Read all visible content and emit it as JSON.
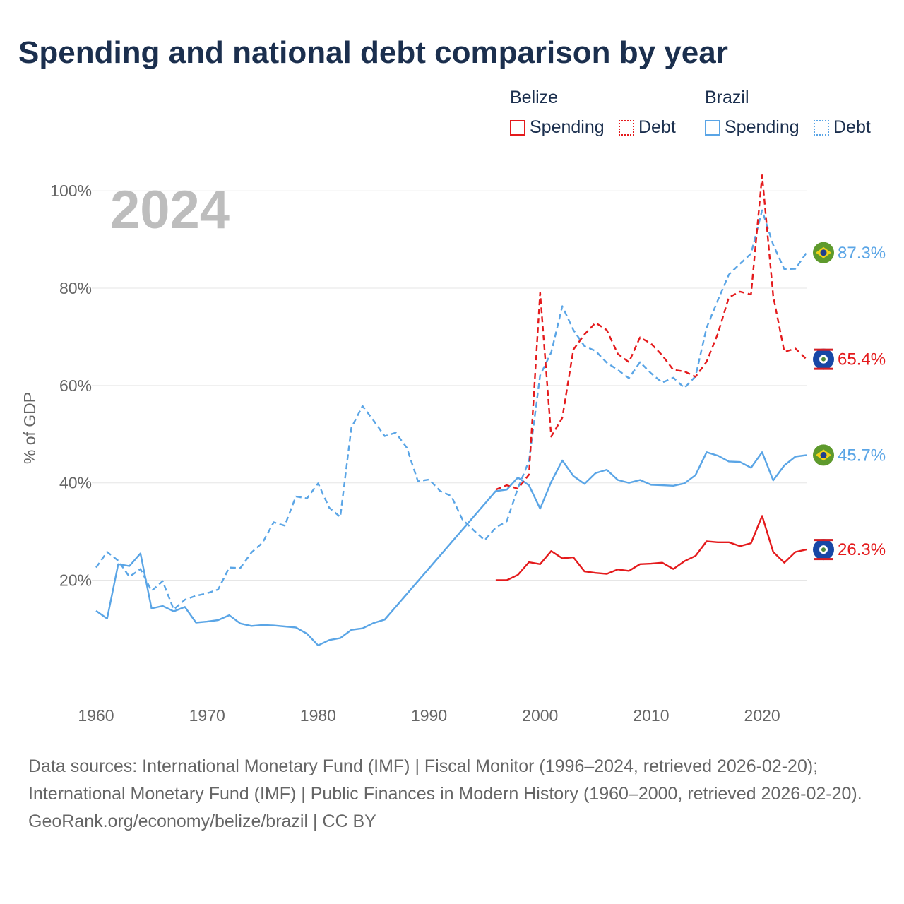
{
  "title": "Spending and national debt comparison by year",
  "legend": {
    "belize": {
      "name": "Belize",
      "spending": "Spending",
      "debt": "Debt"
    },
    "brazil": {
      "name": "Brazil",
      "spending": "Spending",
      "debt": "Debt"
    }
  },
  "colors": {
    "belize": "#e41a1c",
    "brazil": "#5aa5e6",
    "grid": "#e6e6e6",
    "year_label": "#bdbdbd",
    "axis_text": "#666666"
  },
  "chart_data": {
    "type": "line",
    "year_label": "2024",
    "ylabel": "% of GDP",
    "ylim": [
      -3,
      107
    ],
    "xlim": [
      1960,
      2024
    ],
    "y_ticks": [
      20,
      40,
      60,
      80,
      100
    ],
    "y_tick_labels": [
      "20%",
      "40%",
      "60%",
      "80%",
      "100%"
    ],
    "x_ticks": [
      1960,
      1970,
      1980,
      1990,
      2000,
      2010,
      2020
    ],
    "x_tick_labels": [
      "1960",
      "1970",
      "1980",
      "1990",
      "2000",
      "2010",
      "2020"
    ],
    "series": [
      {
        "name": "Brazil Debt",
        "country": "brazil",
        "style": "dashed",
        "end_label": "87.3%",
        "x": [
          1960,
          1961,
          1962,
          1963,
          1964,
          1965,
          1966,
          1967,
          1968,
          1969,
          1970,
          1971,
          1972,
          1973,
          1974,
          1975,
          1976,
          1977,
          1978,
          1979,
          1980,
          1981,
          1982,
          1983,
          1984,
          1985,
          1986,
          1987,
          1988,
          1989,
          1990,
          1991,
          1992,
          1993,
          1994,
          1995,
          1996,
          1997,
          1998,
          1999,
          2000,
          2001,
          2002,
          2003,
          2004,
          2005,
          2006,
          2007,
          2008,
          2009,
          2010,
          2011,
          2012,
          2013,
          2014,
          2015,
          2016,
          2017,
          2018,
          2019,
          2020,
          2021,
          2022,
          2023,
          2024
        ],
        "values": [
          22.6,
          25.8,
          24.0,
          20.7,
          22.3,
          17.8,
          19.8,
          14.0,
          16.0,
          16.8,
          17.3,
          18.1,
          22.6,
          22.5,
          25.7,
          27.7,
          31.9,
          31.2,
          37.2,
          36.8,
          39.9,
          34.9,
          33.0,
          51.3,
          55.8,
          52.8,
          49.6,
          50.3,
          47.2,
          40.3,
          40.7,
          38.3,
          37.3,
          32.5,
          30.3,
          28.2,
          30.8,
          32.1,
          38.9,
          44.5,
          62.1,
          66.8,
          76.3,
          71.4,
          68.1,
          67.1,
          64.7,
          63.2,
          61.5,
          64.8,
          62.5,
          60.6,
          61.6,
          59.5,
          61.9,
          71.9,
          77.5,
          82.8,
          85.0,
          87.1,
          96.0,
          88.9,
          83.9,
          84.0,
          87.3
        ]
      },
      {
        "name": "Brazil Spending",
        "country": "brazil",
        "style": "solid",
        "end_label": "45.7%",
        "x": [
          1960,
          1961,
          1962,
          1963,
          1964,
          1965,
          1966,
          1967,
          1968,
          1969,
          1970,
          1971,
          1972,
          1973,
          1974,
          1975,
          1976,
          1977,
          1978,
          1979,
          1980,
          1981,
          1982,
          1983,
          1984,
          1985,
          1986,
          1996,
          1997,
          1998,
          1999,
          2000,
          2001,
          2002,
          2003,
          2004,
          2005,
          2006,
          2007,
          2008,
          2009,
          2010,
          2011,
          2012,
          2013,
          2014,
          2015,
          2016,
          2017,
          2018,
          2019,
          2020,
          2021,
          2022,
          2023,
          2024
        ],
        "values": [
          13.7,
          12.1,
          23.3,
          22.9,
          25.5,
          14.2,
          14.7,
          13.6,
          14.5,
          11.3,
          11.5,
          11.8,
          12.8,
          11.1,
          10.6,
          10.8,
          10.7,
          10.5,
          10.3,
          9.0,
          6.6,
          7.7,
          8.1,
          9.8,
          10.1,
          11.2,
          11.9,
          38.3,
          38.6,
          41.1,
          39.5,
          34.7,
          40.2,
          44.6,
          41.4,
          39.8,
          42.0,
          42.7,
          40.6,
          40.0,
          40.6,
          39.6,
          39.5,
          39.4,
          39.9,
          41.6,
          46.3,
          45.6,
          44.4,
          44.3,
          43.1,
          46.3,
          40.5,
          43.6,
          45.4,
          45.7
        ]
      },
      {
        "name": "Brazil Spending (gap)",
        "country": "brazil",
        "style": "dashed",
        "end_label": "",
        "x": [
          1986,
          1996
        ],
        "values": [
          11.9,
          38.3
        ]
      },
      {
        "name": "Belize Debt",
        "country": "belize",
        "style": "dashed",
        "end_label": "65.4%",
        "x": [
          1996,
          1997,
          1998,
          1999,
          2000,
          2001,
          2002,
          2003,
          2004,
          2005,
          2006,
          2007,
          2008,
          2009,
          2010,
          2011,
          2012,
          2013,
          2014,
          2015,
          2016,
          2017,
          2018,
          2019,
          2020,
          2021,
          2022,
          2023,
          2024
        ],
        "values": [
          38.6,
          39.5,
          38.8,
          41.7,
          79.1,
          49.5,
          53.4,
          67.4,
          70.5,
          72.9,
          71.4,
          66.5,
          64.8,
          69.9,
          68.6,
          66.2,
          63.2,
          62.9,
          61.8,
          64.9,
          70.6,
          78.1,
          79.3,
          78.7,
          103.2,
          78.4,
          66.9,
          67.6,
          65.4
        ]
      },
      {
        "name": "Belize Spending",
        "country": "belize",
        "style": "solid",
        "end_label": "26.3%",
        "x": [
          1996,
          1997,
          1998,
          1999,
          2000,
          2001,
          2002,
          2003,
          2004,
          2005,
          2006,
          2007,
          2008,
          2009,
          2010,
          2011,
          2012,
          2013,
          2014,
          2015,
          2016,
          2017,
          2018,
          2019,
          2020,
          2021,
          2022,
          2023,
          2024
        ],
        "values": [
          20.0,
          20.0,
          21.1,
          23.7,
          23.3,
          26.0,
          24.5,
          24.7,
          21.8,
          21.5,
          21.3,
          22.2,
          21.9,
          23.3,
          23.4,
          23.6,
          22.3,
          23.9,
          25.0,
          28.0,
          27.8,
          27.8,
          27.0,
          27.6,
          33.2,
          25.8,
          23.6,
          25.8,
          26.3
        ]
      }
    ]
  },
  "footer": {
    "sources": "Data sources: International Monetary Fund (IMF) | Fiscal Monitor (1996–2024, retrieved 2026-02-20); International Monetary Fund (IMF) | Public Finances in Modern History (1960–2000, retrieved 2026-02-20).",
    "credit": "GeoRank.org/economy/belize/brazil | CC BY"
  }
}
